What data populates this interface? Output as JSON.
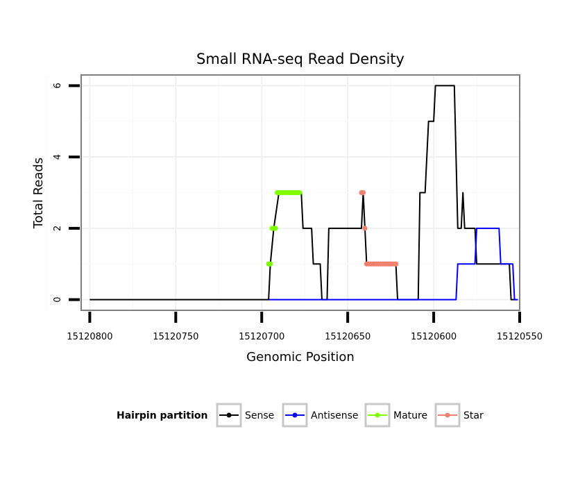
{
  "chart_data": {
    "type": "line",
    "title": "Small RNA-seq Read Density",
    "xlabel": "Genomic Position",
    "ylabel": "Total Reads",
    "xlim": [
      15120805,
      15120550
    ],
    "ylim": [
      -0.3,
      6.3
    ],
    "x_ticks": [
      15120800,
      15120750,
      15120700,
      15120650,
      15120600,
      15120550
    ],
    "x_tick_labels": [
      "15120800",
      "15120750",
      "15120700",
      "15120650",
      "15120600",
      "15120550"
    ],
    "y_ticks": [
      0,
      2,
      4,
      6
    ],
    "y_tick_labels": [
      "0",
      "2",
      "4",
      "6"
    ],
    "legend": {
      "title": "Hairpin partition",
      "position": "bottom",
      "entries": [
        "Sense",
        "Antisense",
        "Mature",
        "Star"
      ]
    },
    "series": [
      {
        "name": "Sense",
        "color": "#000000",
        "style": "line",
        "points": [
          [
            15120800,
            0
          ],
          [
            15120696,
            0
          ],
          [
            15120695,
            1
          ],
          [
            15120693,
            2
          ],
          [
            15120690,
            3
          ],
          [
            15120677,
            3
          ],
          [
            15120676,
            2
          ],
          [
            15120671,
            2
          ],
          [
            15120670,
            1
          ],
          [
            15120666,
            1
          ],
          [
            15120665,
            0
          ],
          [
            15120662,
            0
          ],
          [
            15120661,
            2
          ],
          [
            15120642,
            2
          ],
          [
            15120641,
            3
          ],
          [
            15120640,
            2
          ],
          [
            15120639,
            1
          ],
          [
            15120622,
            1
          ],
          [
            15120621,
            0
          ],
          [
            15120609,
            0
          ],
          [
            15120608,
            3
          ],
          [
            15120605,
            3
          ],
          [
            15120604,
            4
          ],
          [
            15120603,
            5
          ],
          [
            15120600,
            5
          ],
          [
            15120599,
            6
          ],
          [
            15120588,
            6
          ],
          [
            15120587,
            4
          ],
          [
            15120586,
            2
          ],
          [
            15120584,
            2
          ],
          [
            15120583,
            3
          ],
          [
            15120582,
            2
          ],
          [
            15120576,
            2
          ],
          [
            15120575,
            1
          ],
          [
            15120556,
            1
          ],
          [
            15120555,
            0
          ],
          [
            15120552,
            0
          ]
        ]
      },
      {
        "name": "Antisense",
        "color": "#0000ff",
        "style": "line",
        "points": [
          [
            15120696,
            0
          ],
          [
            15120587,
            0
          ],
          [
            15120586,
            1
          ],
          [
            15120576,
            1
          ],
          [
            15120575,
            2
          ],
          [
            15120562,
            2
          ],
          [
            15120561,
            1
          ],
          [
            15120554,
            1
          ],
          [
            15120553,
            0
          ],
          [
            15120551,
            0
          ]
        ]
      },
      {
        "name": "Mature",
        "color": "#7fff00",
        "style": "points",
        "points": [
          [
            15120696,
            1
          ],
          [
            15120695,
            1
          ],
          [
            15120694,
            2
          ],
          [
            15120693,
            2
          ],
          [
            15120692,
            2
          ],
          [
            15120691,
            3
          ],
          [
            15120690,
            3
          ],
          [
            15120689,
            3
          ],
          [
            15120688,
            3
          ],
          [
            15120687,
            3
          ],
          [
            15120686,
            3
          ],
          [
            15120685,
            3
          ],
          [
            15120684,
            3
          ],
          [
            15120683,
            3
          ],
          [
            15120682,
            3
          ],
          [
            15120681,
            3
          ],
          [
            15120680,
            3
          ],
          [
            15120679,
            3
          ],
          [
            15120678,
            3
          ]
        ]
      },
      {
        "name": "Star",
        "color": "#f08070",
        "style": "points",
        "points": [
          [
            15120642,
            3
          ],
          [
            15120641,
            3
          ],
          [
            15120640,
            2
          ],
          [
            15120639,
            1
          ],
          [
            15120638,
            1
          ],
          [
            15120637,
            1
          ],
          [
            15120636,
            1
          ],
          [
            15120635,
            1
          ],
          [
            15120634,
            1
          ],
          [
            15120633,
            1
          ],
          [
            15120632,
            1
          ],
          [
            15120631,
            1
          ],
          [
            15120630,
            1
          ],
          [
            15120629,
            1
          ],
          [
            15120628,
            1
          ],
          [
            15120627,
            1
          ],
          [
            15120626,
            1
          ],
          [
            15120625,
            1
          ],
          [
            15120624,
            1
          ],
          [
            15120623,
            1
          ],
          [
            15120622,
            1
          ]
        ]
      }
    ]
  }
}
